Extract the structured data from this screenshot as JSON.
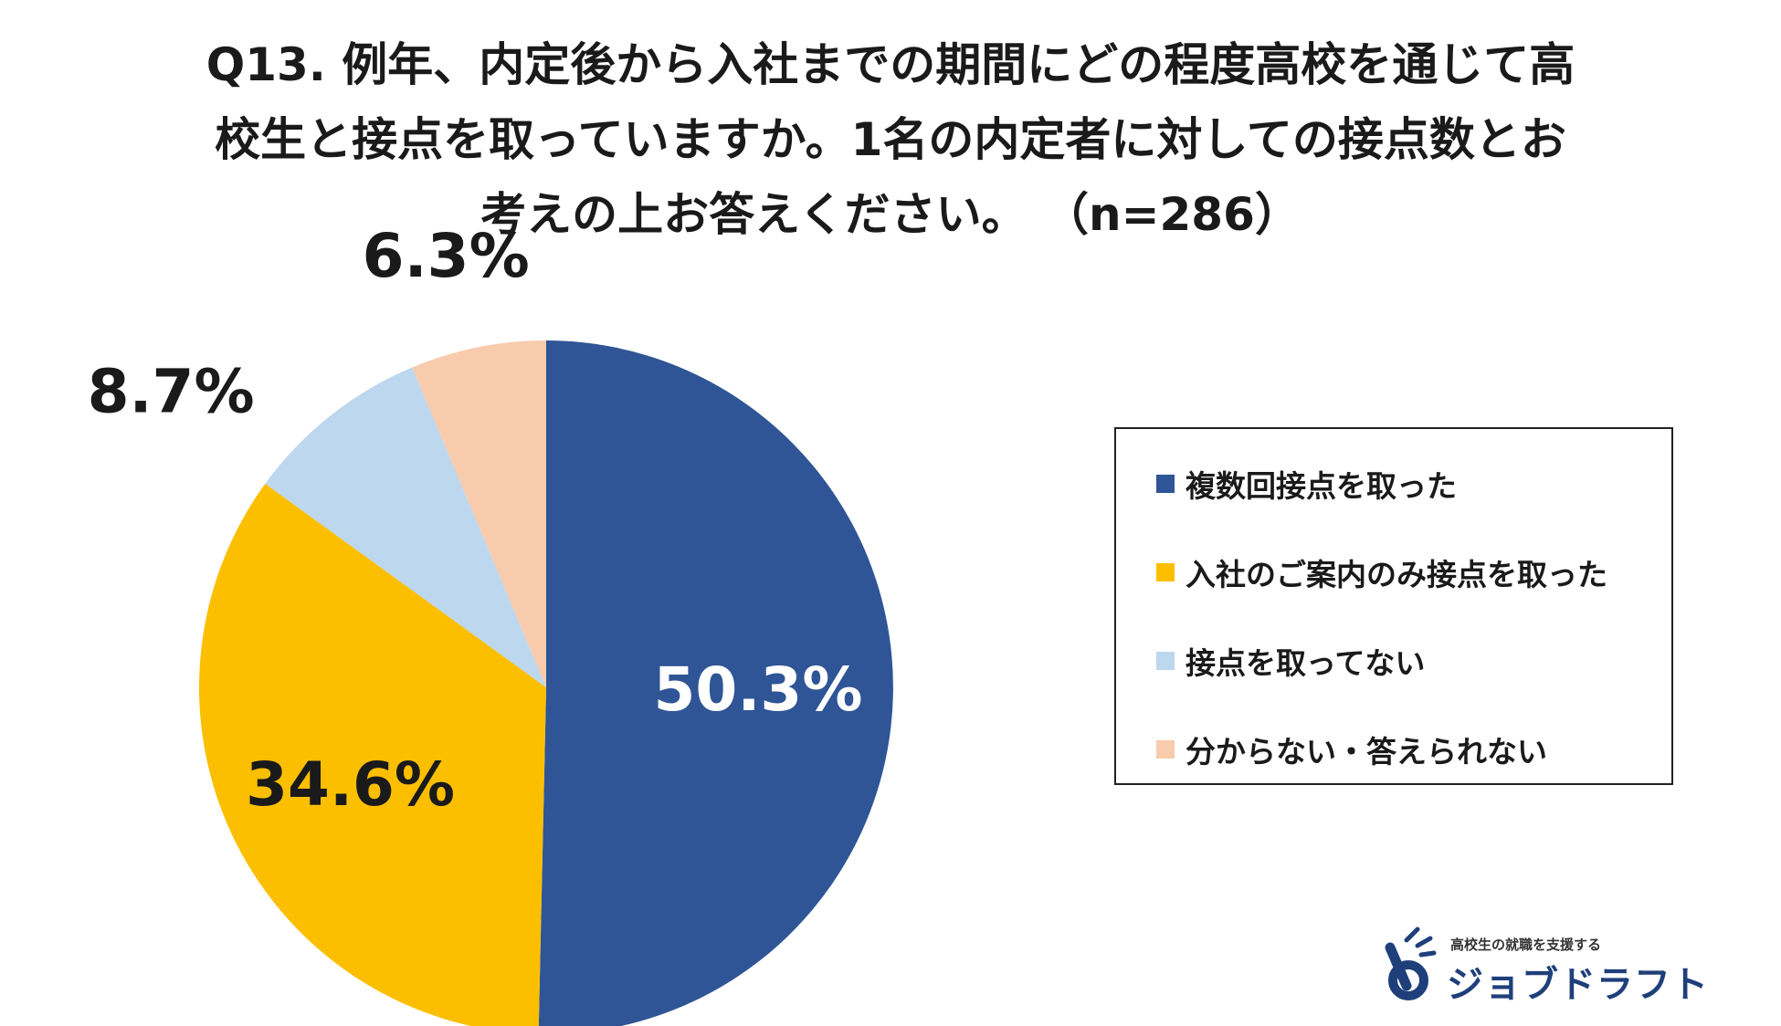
{
  "chart_data": {
    "type": "pie",
    "title_lines": [
      "Q13. 例年、内定後から入社までの期間にどの程度高校を通じて高",
      "校生と接点を取っていますか。1名の内定者に対しての接点数とお",
      "考えの上お答えください。 （n=286）"
    ],
    "slices": [
      {
        "label": "複数回接点を取った",
        "value": 50.3,
        "display": "50.3%",
        "color": "#2f5596"
      },
      {
        "label": "入社のご案内のみ接点を取った",
        "value": 34.6,
        "display": "34.6%",
        "color": "#fbbf00"
      },
      {
        "label": "接点を取ってない",
        "value": 8.7,
        "display": "8.7%",
        "color": "#bdd7ee"
      },
      {
        "label": "分からない・答えられない",
        "value": 6.3,
        "display": "6.3%",
        "color": "#f8cbad"
      }
    ],
    "start_angle": "12 o'clock",
    "direction": "clockwise",
    "legend_position": "right"
  },
  "logo": {
    "tagline": "高校生の就職を支援する",
    "name": "ジョブドラフト",
    "color": "#1f3f7a"
  }
}
